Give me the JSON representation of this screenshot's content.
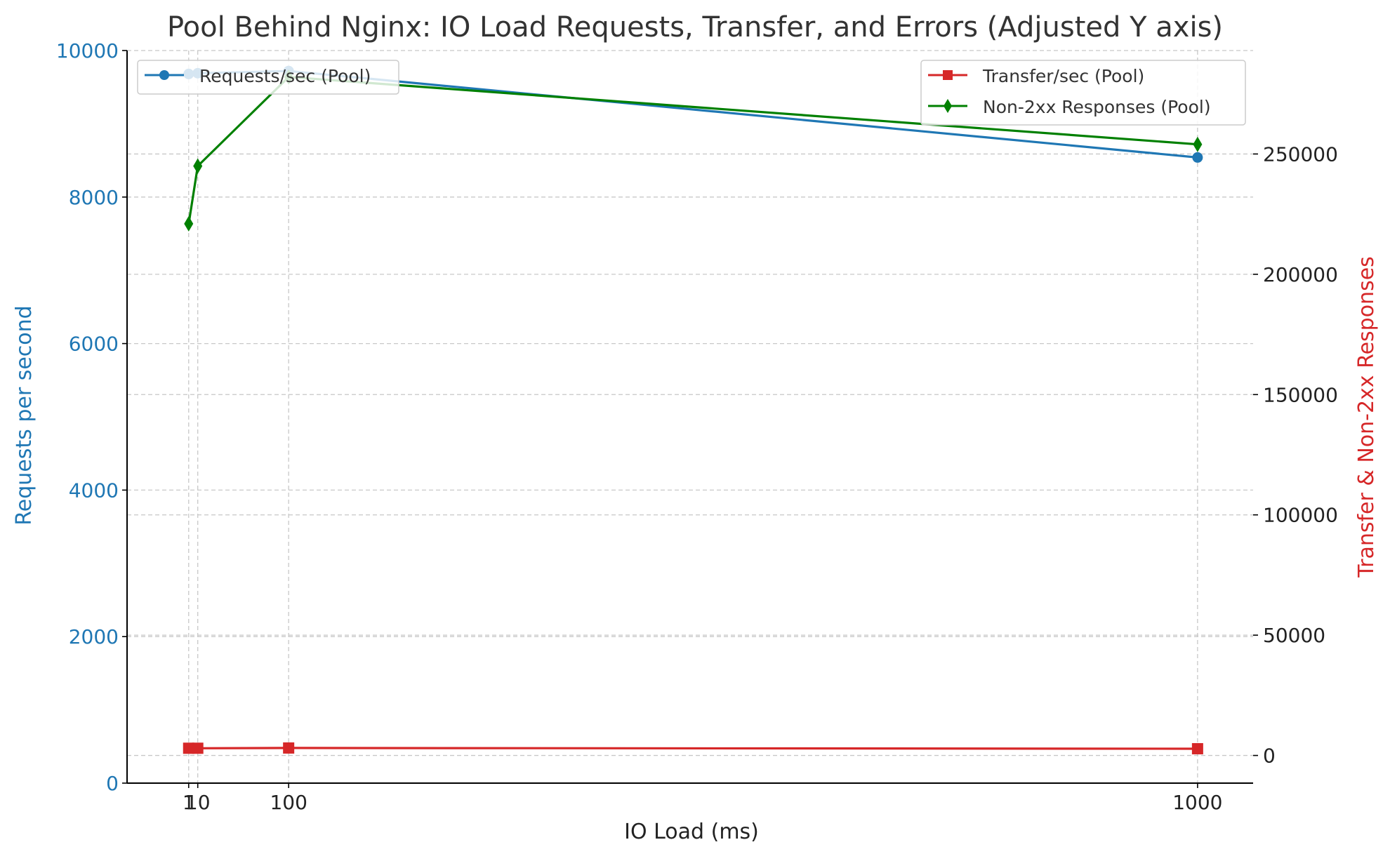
{
  "chart_data": {
    "type": "line",
    "title": "Pool Behind Nginx: IO Load Requests, Transfer, and Errors (Adjusted Y axis)",
    "xlabel": "IO Load (ms)",
    "ylabel_left": "Requests per second",
    "ylabel_right": "Transfer & Non-2xx Responses",
    "x_ticks": [
      1,
      10,
      100,
      1000
    ],
    "x_tick_labels": [
      "1",
      "10",
      "100",
      "1000"
    ],
    "xlim": [
      -60,
      1055
    ],
    "ylim_left": [
      0,
      10000
    ],
    "y_left_ticks": [
      0,
      2000,
      4000,
      6000,
      8000,
      10000
    ],
    "y_left_tick_labels": [
      "0",
      "2000",
      "4000",
      "6000",
      "8000",
      "10000"
    ],
    "ylim_right": [
      -11500,
      293000
    ],
    "y_right_ticks": [
      0,
      50000,
      100000,
      150000,
      200000,
      250000
    ],
    "y_right_tick_labels": [
      "0",
      "50000",
      "100000",
      "150000",
      "200000",
      "250000"
    ],
    "grid": true,
    "colors": {
      "requests": "#1f77b4",
      "transfer": "#d62728",
      "non2xx": "#008000",
      "left_axis": "#1f77b4",
      "right_label": "#d62728"
    },
    "series": [
      {
        "name": "Requests/sec (Pool)",
        "axis": "left",
        "marker": "circle",
        "x": [
          1,
          10,
          100,
          1000
        ],
        "values": [
          9680,
          9690,
          9720,
          8540
        ]
      },
      {
        "name": "Transfer/sec (Pool)",
        "axis": "right",
        "marker": "square",
        "x": [
          1,
          10,
          100,
          1000
        ],
        "values": [
          3000,
          3000,
          3100,
          2800
        ]
      },
      {
        "name": "Non-2xx Responses (Pool)",
        "axis": "right",
        "marker": "diamond",
        "x": [
          1,
          10,
          100,
          1000
        ],
        "values": [
          221000,
          245000,
          282000,
          254000
        ]
      }
    ],
    "legend_left_placement": "upper-left",
    "legend_right_placement": "upper-right"
  }
}
